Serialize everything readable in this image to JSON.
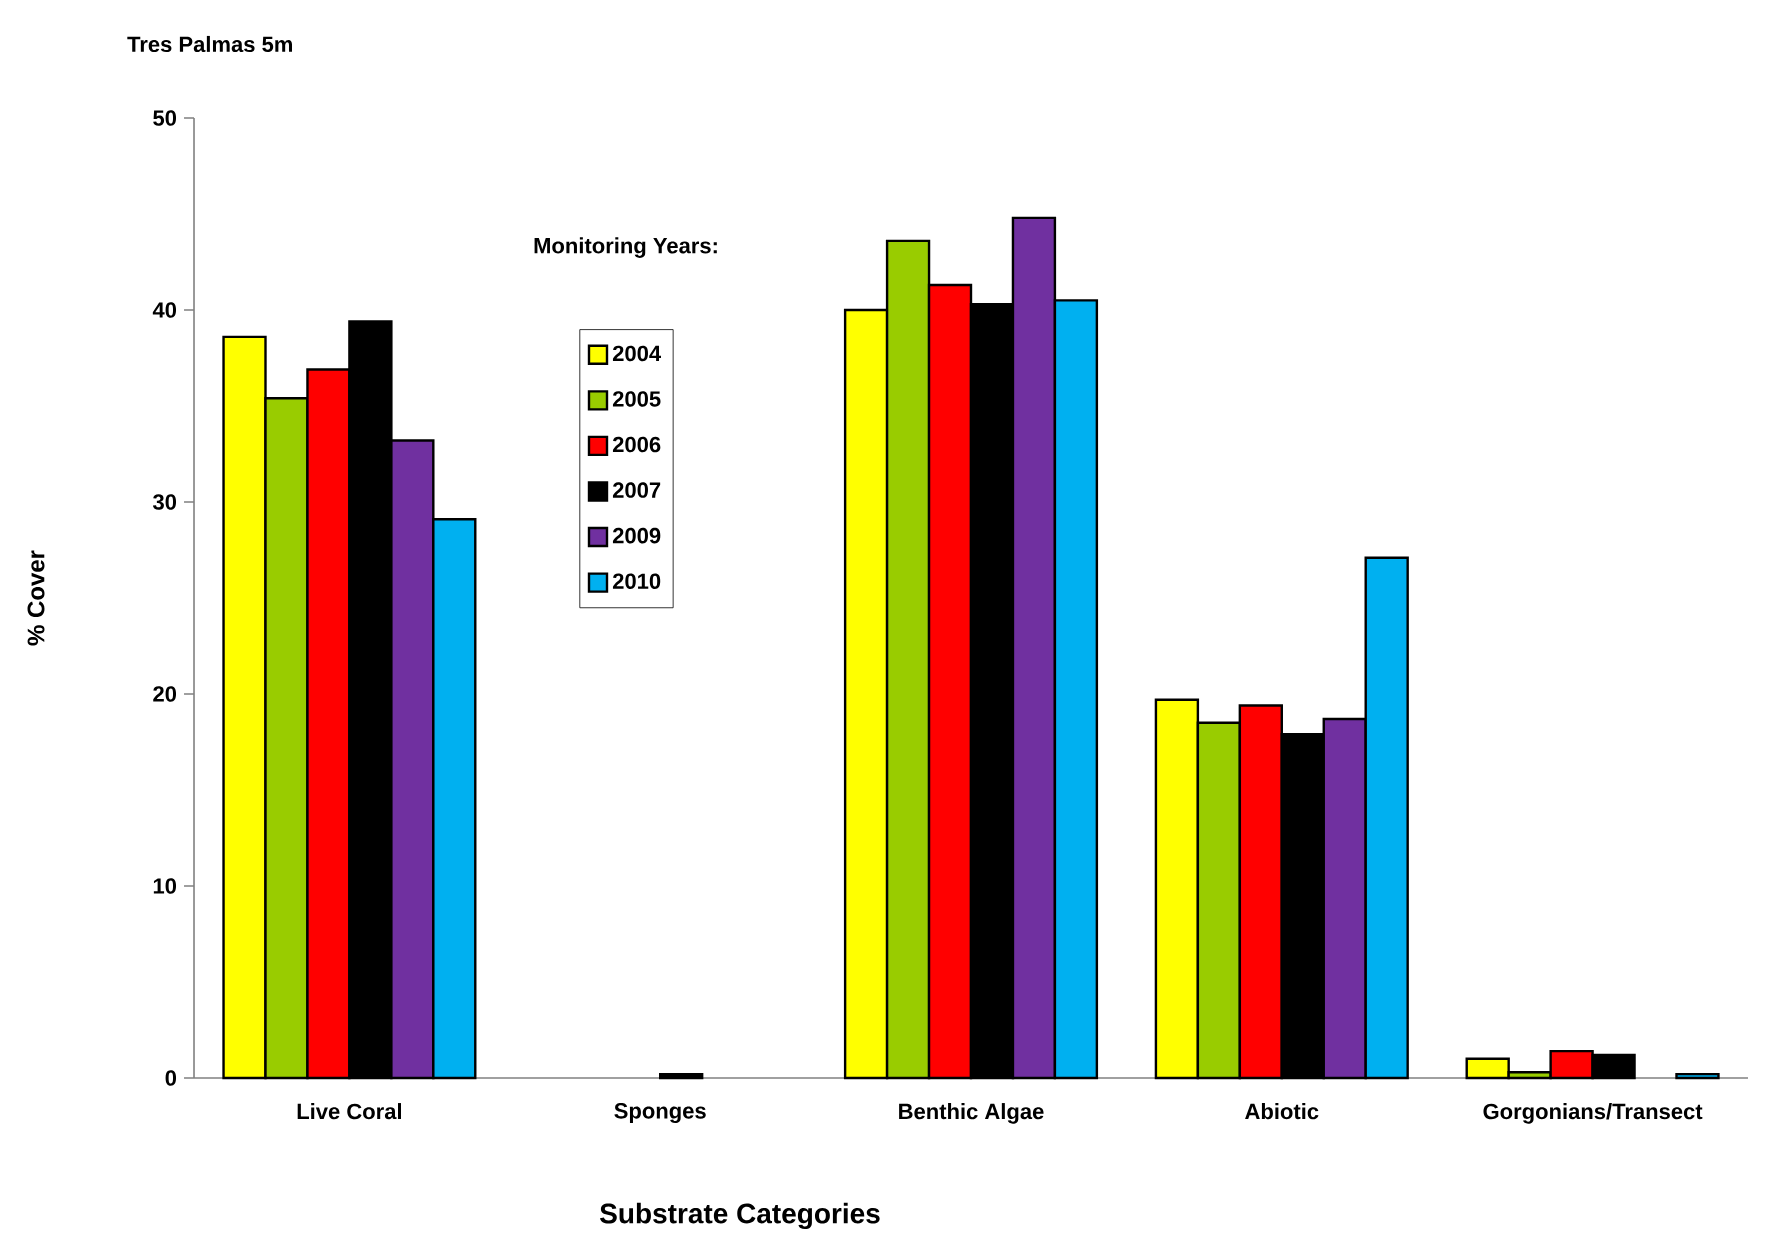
{
  "chart_data": {
    "type": "bar",
    "title": "Tres Palmas 5m",
    "xlabel": "Substrate Categories",
    "ylabel": "% Cover",
    "legend_title": "Monitoring Years:",
    "categories": [
      "Live Coral",
      "Sponges",
      "Benthic Algae",
      "Abiotic",
      "Gorgonians/Transect"
    ],
    "series": [
      {
        "name": "2004",
        "color": "#ffff00",
        "values": [
          38.6,
          null,
          40.0,
          19.7,
          1.0
        ]
      },
      {
        "name": "2005",
        "color": "#99cc00",
        "values": [
          35.4,
          null,
          43.6,
          18.5,
          0.3
        ]
      },
      {
        "name": "2006",
        "color": "#ff0000",
        "values": [
          36.9,
          null,
          41.3,
          19.4,
          1.4
        ]
      },
      {
        "name": "2007",
        "color": "#000000",
        "values": [
          39.4,
          0.2,
          40.3,
          17.9,
          1.2
        ]
      },
      {
        "name": "2009",
        "color": "#7030a0",
        "values": [
          33.2,
          null,
          44.8,
          18.7,
          null
        ]
      },
      {
        "name": "2010",
        "color": "#00b0f0",
        "values": [
          29.1,
          null,
          40.5,
          27.1,
          0.2
        ]
      }
    ],
    "ylim": [
      0,
      50
    ],
    "yticks": [
      0,
      10,
      20,
      30,
      40,
      50
    ],
    "grid": false,
    "legend": "top left"
  }
}
